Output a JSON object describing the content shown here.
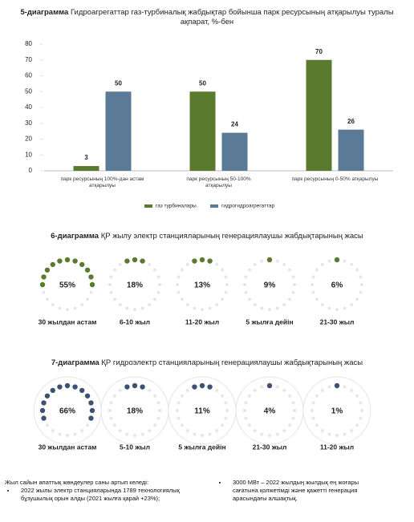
{
  "chart_data": [
    {
      "type": "bar",
      "label": "5-диаграмма",
      "title": "Гидроагрегаттар газ-турбиналық жабдықтар бойынша парк ресурсының атқарылуы туралы ақпарат, %-бен",
      "categories": [
        "парк ресурсының 100%-дан астам атқарылуы",
        "парк ресурсының 50-100% атқарылуы",
        "парк ресурсының 0-50% атқарылуы"
      ],
      "series": [
        {
          "name": "газ турбиналары",
          "color": "#5a7a2e",
          "values": [
            3,
            50,
            70
          ]
        },
        {
          "name": "гидрогидроагрегаттар",
          "color": "#5b7a97",
          "values": [
            50,
            24,
            26
          ]
        }
      ],
      "ylim": [
        0,
        80
      ],
      "yticks": [
        0,
        10,
        20,
        30,
        40,
        50,
        60,
        70,
        80
      ],
      "legend": "bottom"
    },
    {
      "type": "pie",
      "label": "6-диаграмма",
      "title": "ҚР жылу электр станцияларының генерациялаушы жабдықтарының жасы",
      "categories": [
        "30 жылдан астам",
        "6-10 жыл",
        "11-20 жыл",
        "5 жылға дейін",
        "21-30 жыл"
      ],
      "values": [
        55,
        18,
        13,
        9,
        6
      ],
      "value_labels": [
        "55%",
        "18%",
        "13%",
        "9%",
        "6%"
      ],
      "color": "#5a7a2e",
      "ring": false
    },
    {
      "type": "pie",
      "label": "7-диаграмма",
      "title": "ҚР гидроэлектр станцияларының генерациялаушы жабдықтарының жасы",
      "categories": [
        "30 жылдан астам",
        "5-10 жыл",
        "5 жылға дейін",
        "21-30 жыл",
        "11-20 жыл"
      ],
      "values": [
        66,
        18,
        11,
        4,
        1
      ],
      "value_labels": [
        "66%",
        "18%",
        "11%",
        "4%",
        "1%"
      ],
      "color": "#3d5273",
      "ring": true
    }
  ],
  "notes": {
    "left_heading": "Жыл сайын апаттық жөндеулер саны артып келеді:",
    "left_bullet": "2022 жылы электр станцияларында 1789 технологиялық бұзушылық орын алды (2021 жылға қарай +23%);",
    "right_bullet": "3000 МВт – 2022 жылдың жылдық ең жоғары сағатына қолжетімді және қажетті генерация арасындағы алшақтық."
  }
}
